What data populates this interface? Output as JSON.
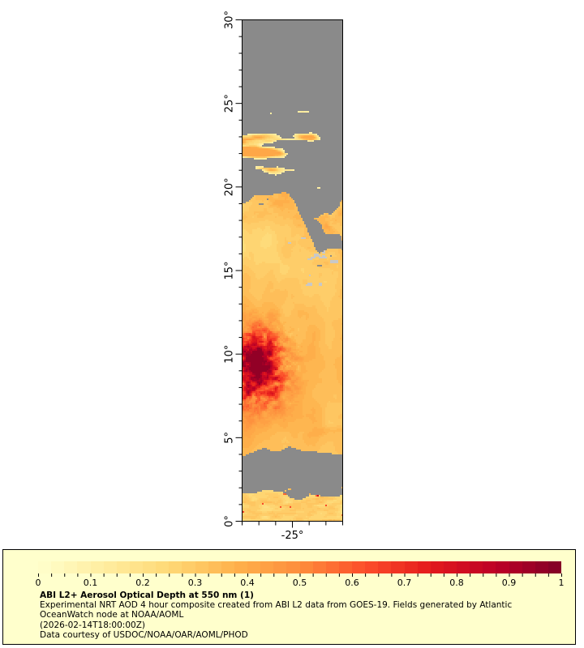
{
  "legend": {
    "background": "#FFFFCC",
    "border_color": "#000000",
    "title": "ABI L2+ Aerosol Optical Depth at 550 nm (1)",
    "lines": [
      "Experimental NRT AOD 4 hour composite created from ABI L2 data from GOES-19. Fields generated by Atlantic",
      "OceanWatch node at NOAA/AOML",
      "(2026-02-14T18:00:00Z)",
      "Data courtesy of USDOC/NOAA/OAR/AOML/PHOD"
    ],
    "colorbar_labels": [
      "0",
      "0.1",
      "0.2",
      "0.3",
      "0.4",
      "0.5",
      "0.6",
      "0.7",
      "0.8",
      "0.9",
      "1"
    ]
  },
  "chart_data": {
    "type": "heatmap",
    "title": "ABI L2+ Aerosol Optical Depth at 550 nm (1)",
    "xlabel": "",
    "ylabel": "",
    "lon_range": [
      -28,
      -22
    ],
    "lat_range": [
      0,
      30
    ],
    "aod_range": [
      0,
      1
    ],
    "x_major_ticks": [
      {
        "value": -25,
        "label": "-25°"
      }
    ],
    "x_minor_step": 1,
    "y_major_ticks": [
      {
        "value": 0,
        "label": "0°"
      },
      {
        "value": 5,
        "label": "5°"
      },
      {
        "value": 10,
        "label": "10°"
      },
      {
        "value": 15,
        "label": "15°"
      },
      {
        "value": 20,
        "label": "20°"
      },
      {
        "value": 25,
        "label": "25°"
      },
      {
        "value": 30,
        "label": "30°"
      }
    ],
    "y_minor_step": 1,
    "colormap": {
      "name": "YlOrRd",
      "levels": 40,
      "anchors": [
        [
          0.0,
          "#FFFFCC"
        ],
        [
          0.125,
          "#FFEDA0"
        ],
        [
          0.25,
          "#FED976"
        ],
        [
          0.375,
          "#FEB24C"
        ],
        [
          0.5,
          "#FD8D3C"
        ],
        [
          0.625,
          "#FC4E2A"
        ],
        [
          0.75,
          "#E31A1C"
        ],
        [
          0.875,
          "#BD0026"
        ],
        [
          1.0,
          "#800026"
        ]
      ]
    },
    "no_data_color": "#8A8A8A",
    "cloud_color": "#C8C8C8",
    "features": [
      {
        "name": "no-data-north",
        "type": "no_data",
        "lat": [
          19.4,
          30
        ]
      },
      {
        "name": "cloud-streaks",
        "type": "aod",
        "lat": [
          19.9,
          24.8
        ],
        "aod": [
          0.1,
          0.35
        ]
      },
      {
        "name": "right-edge-plume",
        "type": "aod",
        "lat": [
          16.6,
          19.8
        ],
        "aod": [
          0.25,
          0.45
        ]
      },
      {
        "name": "main-dust-field",
        "type": "aod",
        "lat": [
          4.1,
          19.4
        ],
        "aod": [
          0.25,
          0.5
        ]
      },
      {
        "name": "dust-hotspot",
        "type": "aod",
        "lat_center": 9.2,
        "u_center": 0.16,
        "aod": [
          0.55,
          0.95
        ]
      },
      {
        "name": "itcz-cloud-band",
        "type": "no_data",
        "lat": [
          1.7,
          4.1
        ]
      },
      {
        "name": "south-speckle-band",
        "type": "aod",
        "lat": [
          0,
          1.7
        ],
        "aod": [
          0.2,
          0.9
        ]
      }
    ]
  }
}
